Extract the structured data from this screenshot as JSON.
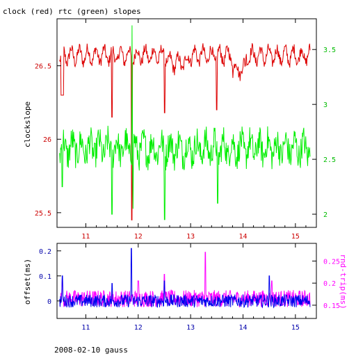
{
  "title": "clock (red) rtc (green) slopes",
  "footer": "2008-02-10 gauss",
  "colors": {
    "clock": "#dd0000",
    "rtc": "#00ee00",
    "offset": "#0000ee",
    "rndtrip": "#ff00ff",
    "frame": "#000000"
  },
  "chart_data": [
    {
      "type": "line",
      "title": "clock (red) rtc (green) slopes",
      "ylabel": "clockslope",
      "y2label": "",
      "xlim": [
        10.45,
        15.4
      ],
      "ylim": [
        25.4,
        26.82
      ],
      "y2lim": [
        1.88,
        3.78
      ],
      "x_ticks": [
        "11",
        "12",
        "13",
        "14",
        "15"
      ],
      "y_ticks": [
        "25.5",
        "26",
        "26.5"
      ],
      "y2_ticks": [
        "2",
        "2.5",
        "3",
        "3.5"
      ],
      "series": [
        {
          "color": "red",
          "axis": "left",
          "baseline": 26.57,
          "noise": 0.055,
          "outlier_min": 26.28,
          "notes": "mostly 26.45-26.72 with deep negative spikes at 11.5, 11.88, 12.5, 13.5"
        },
        {
          "color": "green",
          "axis": "right",
          "baseline": 2.6,
          "noise": 0.13,
          "notes": "mostly 2.35-2.85 with spikes down to ~2.0 at 11.5, 11.88, 12.5 and up to 3.7 at 11.88"
        }
      ]
    },
    {
      "type": "line",
      "ylabel": "offset(ms)",
      "y2label": "rnd-trip(ms)",
      "xlim": [
        10.45,
        15.4
      ],
      "ylim": [
        -0.07,
        0.23
      ],
      "y2lim": [
        0.12,
        0.29
      ],
      "x_ticks": [
        "11",
        "12",
        "13",
        "14",
        "15"
      ],
      "y_ticks": [
        "0",
        "0.1",
        "0.2"
      ],
      "y2_ticks": [
        "0.15",
        "0.2",
        "0.25"
      ],
      "series": [
        {
          "color": "blue",
          "axis": "left",
          "baseline": 0.0,
          "noise": 0.02,
          "peak": 0.21,
          "peak_x": 11.87
        },
        {
          "color": "magenta",
          "axis": "right",
          "baseline": 0.165,
          "noise": 0.012,
          "peak": 0.27,
          "peak_x": 13.28
        }
      ]
    }
  ]
}
